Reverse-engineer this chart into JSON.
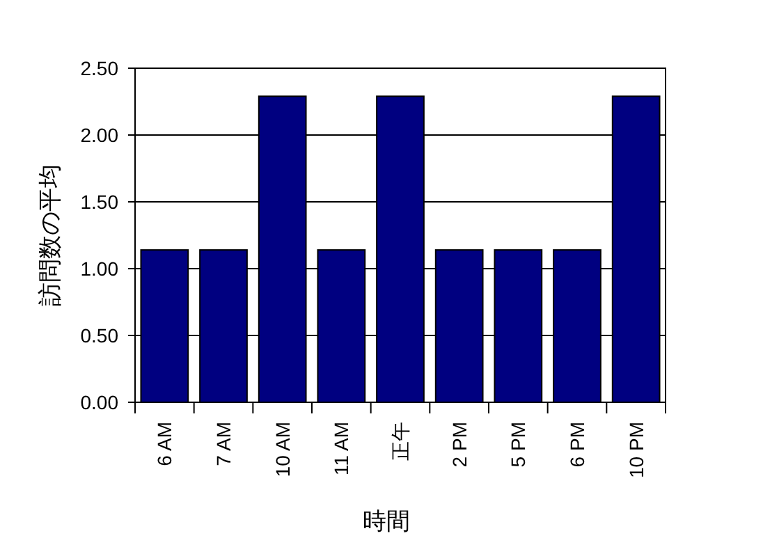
{
  "chart_data": {
    "type": "bar",
    "xlabel": "時間",
    "ylabel": "訪問数の平均",
    "categories": [
      "6 AM",
      "7 AM",
      "10 AM",
      "11 AM",
      "正午",
      "2 PM",
      "5 PM",
      "6 PM",
      "10 PM"
    ],
    "values": [
      1.14,
      1.14,
      2.29,
      1.14,
      2.29,
      1.14,
      1.14,
      1.14,
      2.29
    ],
    "color": "#000080",
    "ylim": [
      0,
      2.5
    ],
    "yticks": [
      {
        "value": 0,
        "label": "0.00"
      },
      {
        "value": 0.5,
        "label": "0.50"
      },
      {
        "value": 1,
        "label": "1.00"
      },
      {
        "value": 1.5,
        "label": "1.50"
      },
      {
        "value": 2,
        "label": "2.00"
      },
      {
        "value": 2.5,
        "label": "2.50"
      }
    ],
    "grid": "y"
  }
}
